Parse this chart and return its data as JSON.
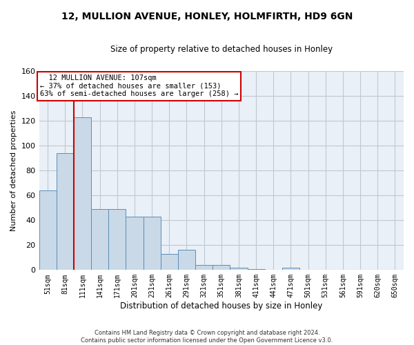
{
  "title_line1": "12, MULLION AVENUE, HONLEY, HOLMFIRTH, HD9 6GN",
  "title_line2": "Size of property relative to detached houses in Honley",
  "xlabel": "Distribution of detached houses by size in Honley",
  "ylabel": "Number of detached properties",
  "footnote": "Contains HM Land Registry data © Crown copyright and database right 2024.\nContains public sector information licensed under the Open Government Licence v3.0.",
  "bar_labels": [
    "51sqm",
    "81sqm",
    "111sqm",
    "141sqm",
    "171sqm",
    "201sqm",
    "231sqm",
    "261sqm",
    "291sqm",
    "321sqm",
    "351sqm",
    "381sqm",
    "411sqm",
    "441sqm",
    "471sqm",
    "501sqm",
    "531sqm",
    "561sqm",
    "591sqm",
    "620sqm",
    "650sqm"
  ],
  "bar_values": [
    64,
    94,
    123,
    49,
    49,
    43,
    43,
    13,
    16,
    4,
    4,
    2,
    1,
    0,
    2,
    0,
    0,
    0,
    0,
    0,
    0
  ],
  "bar_color": "#c9d9e8",
  "bar_edge_color": "#5b8db8",
  "grid_color": "#c0c8d0",
  "background_color": "#eaf0f7",
  "annotation_line1": "  12 MULLION AVENUE: 107sqm",
  "annotation_line2": "← 37% of detached houses are smaller (153)",
  "annotation_line3": "63% of semi-detached houses are larger (258) →",
  "annotation_box_color": "#ffffff",
  "annotation_box_edge_color": "#cc0000",
  "vline_color": "#cc0000",
  "vline_x": 1.5,
  "ylim": [
    0,
    160
  ],
  "yticks": [
    0,
    20,
    40,
    60,
    80,
    100,
    120,
    140,
    160
  ],
  "title_fontsize": 10,
  "subtitle_fontsize": 8.5,
  "ylabel_fontsize": 8,
  "xlabel_fontsize": 8.5,
  "tick_fontsize": 7,
  "footnote_fontsize": 6
}
